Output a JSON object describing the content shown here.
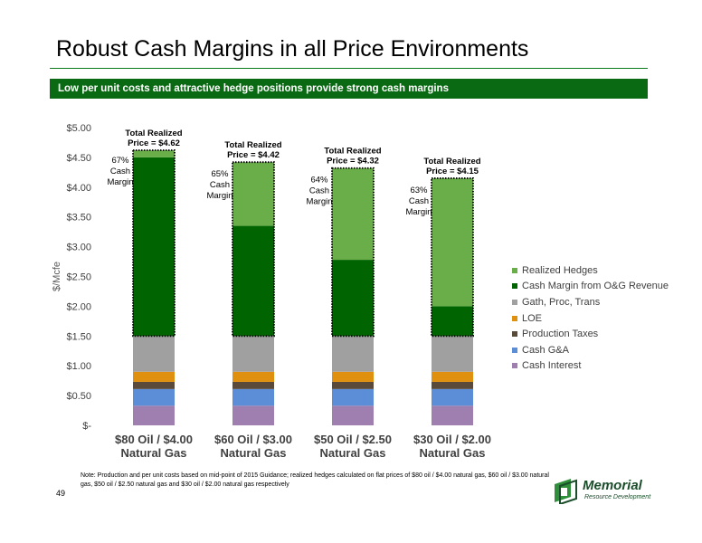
{
  "page": {
    "title": "Robust Cash Margins in all Price Environments",
    "subtitle": "Low per unit costs and attractive hedge positions provide strong cash margins",
    "note": "Note: Production and per unit costs based on mid-point of 2015 Guidance; realized hedges calculated on flat prices of $80 oil / $4.00 natural gas, $60 oil / $3.00 natural gas, $50 oil / $2.50 natural gas and $30 oil / $2.00 natural gas respectively",
    "page_number": "49",
    "logo": {
      "name": "Memorial",
      "tagline": "Resource Development"
    }
  },
  "colors": {
    "banner": "#0a6a14",
    "rule": "#0b7a1a"
  },
  "chart_data": {
    "type": "bar",
    "stacked": true,
    "ylabel": "$/Mcfe",
    "ylim": [
      0,
      5
    ],
    "y_ticks": [
      0,
      0.5,
      1,
      1.5,
      2,
      2.5,
      3,
      3.5,
      4,
      4.5,
      5
    ],
    "y_tick_labels": [
      "$-",
      "$0.50",
      "$1.00",
      "$1.50",
      "$2.00",
      "$2.50",
      "$3.00",
      "$3.50",
      "$4.00",
      "$4.50",
      "$5.00"
    ],
    "categories": [
      [
        "$80 Oil / $4.00",
        "Natural Gas"
      ],
      [
        "$60 Oil / $3.00",
        "Natural Gas"
      ],
      [
        "$50 Oil / $2.50",
        "Natural Gas"
      ],
      [
        "$30 Oil / $2.00",
        "Natural Gas"
      ]
    ],
    "series": [
      {
        "name": "Cash Interest",
        "color": "#9e7fb0",
        "values": [
          0.33,
          0.33,
          0.33,
          0.33
        ]
      },
      {
        "name": "Cash G&A",
        "color": "#5b8ed6",
        "values": [
          0.28,
          0.28,
          0.28,
          0.28
        ]
      },
      {
        "name": "Production Taxes",
        "color": "#5a4a3a",
        "values": [
          0.12,
          0.12,
          0.12,
          0.12
        ]
      },
      {
        "name": "LOE",
        "color": "#e0900f",
        "values": [
          0.17,
          0.17,
          0.17,
          0.17
        ]
      },
      {
        "name": "Gath, Proc, Trans",
        "color": "#a0a0a0",
        "values": [
          0.6,
          0.6,
          0.6,
          0.6
        ]
      },
      {
        "name": "Cash Margin from O&G Revenue",
        "color": "#006400",
        "values": [
          3.0,
          1.85,
          1.28,
          0.5
        ]
      },
      {
        "name": "Realized Hedges",
        "color": "#6aae4a",
        "values": [
          0.12,
          1.07,
          1.54,
          2.15
        ]
      }
    ],
    "totals": [
      4.62,
      4.42,
      4.32,
      4.15
    ],
    "total_labels": [
      [
        "Total Realized",
        "Price = $4.62"
      ],
      [
        "Total Realized",
        "Price = $4.42"
      ],
      [
        "Total Realized",
        "Price = $4.32"
      ],
      [
        "Total Realized",
        "Price = $4.15"
      ]
    ],
    "margin_labels": [
      [
        "67%",
        "Cash",
        "Margin"
      ],
      [
        "65%",
        "Cash",
        "Margin"
      ],
      [
        "64%",
        "Cash",
        "Margin"
      ],
      [
        "63%",
        "Cash",
        "Margin"
      ]
    ],
    "legend": {
      "position": "right",
      "order": [
        "Realized Hedges",
        "Cash Margin from O&G Revenue",
        "Gath, Proc, Trans",
        "LOE",
        "Production Taxes",
        "Cash G&A",
        "Cash Interest"
      ]
    },
    "grid": false
  }
}
